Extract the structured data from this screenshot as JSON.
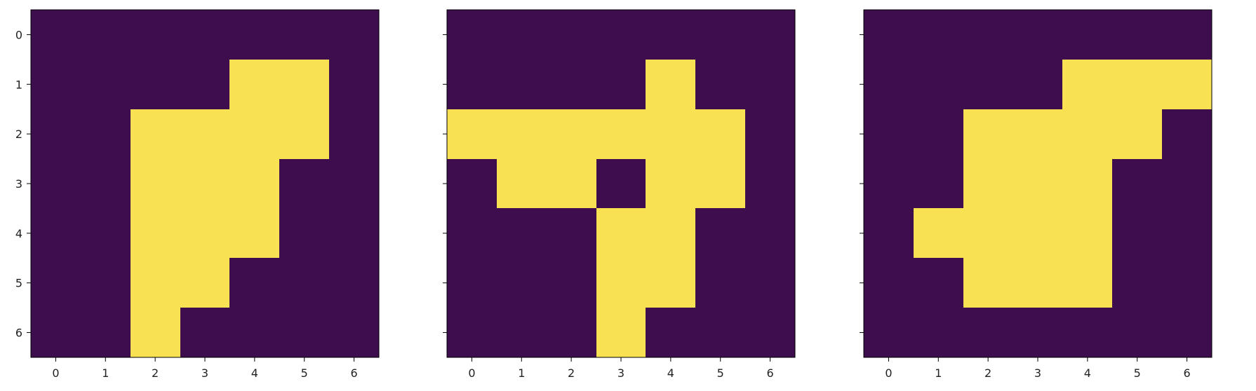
{
  "colors": {
    "background_cell": "#3d0d4d",
    "foreground_cell": "#f8e254",
    "axis": "#000000",
    "tick_text": "#222222"
  },
  "chart_data": [
    {
      "type": "heatmap",
      "title": "",
      "xlabel": "",
      "ylabel": "",
      "x_ticks": [
        "0",
        "1",
        "2",
        "3",
        "4",
        "5",
        "6"
      ],
      "y_ticks": [
        "0",
        "1",
        "2",
        "3",
        "4",
        "5",
        "6"
      ],
      "show_y_tick_labels": true,
      "grid": false,
      "matrix": [
        [
          0,
          0,
          0,
          0,
          0,
          0,
          0
        ],
        [
          0,
          0,
          0,
          0,
          1,
          1,
          0
        ],
        [
          0,
          0,
          1,
          1,
          1,
          1,
          0
        ],
        [
          0,
          0,
          1,
          1,
          1,
          0,
          0
        ],
        [
          0,
          0,
          1,
          1,
          1,
          0,
          0
        ],
        [
          0,
          0,
          1,
          1,
          0,
          0,
          0
        ],
        [
          0,
          0,
          1,
          0,
          0,
          0,
          0
        ]
      ]
    },
    {
      "type": "heatmap",
      "title": "",
      "xlabel": "",
      "ylabel": "",
      "x_ticks": [
        "0",
        "1",
        "2",
        "3",
        "4",
        "5",
        "6"
      ],
      "y_ticks": [
        "0",
        "1",
        "2",
        "3",
        "4",
        "5",
        "6"
      ],
      "show_y_tick_labels": false,
      "grid": false,
      "matrix": [
        [
          0,
          0,
          0,
          0,
          0,
          0,
          0
        ],
        [
          0,
          0,
          0,
          0,
          1,
          0,
          0
        ],
        [
          1,
          1,
          1,
          1,
          1,
          1,
          0
        ],
        [
          0,
          1,
          1,
          0,
          1,
          1,
          0
        ],
        [
          0,
          0,
          0,
          1,
          1,
          0,
          0
        ],
        [
          0,
          0,
          0,
          1,
          1,
          0,
          0
        ],
        [
          0,
          0,
          0,
          1,
          0,
          0,
          0
        ]
      ]
    },
    {
      "type": "heatmap",
      "title": "",
      "xlabel": "",
      "ylabel": "",
      "x_ticks": [
        "0",
        "1",
        "2",
        "3",
        "4",
        "5",
        "6"
      ],
      "y_ticks": [
        "0",
        "1",
        "2",
        "3",
        "4",
        "5",
        "6"
      ],
      "show_y_tick_labels": false,
      "grid": false,
      "matrix": [
        [
          0,
          0,
          0,
          0,
          0,
          0,
          0
        ],
        [
          0,
          0,
          0,
          0,
          1,
          1,
          1
        ],
        [
          0,
          0,
          1,
          1,
          1,
          1,
          0
        ],
        [
          0,
          0,
          1,
          1,
          1,
          0,
          0
        ],
        [
          0,
          1,
          1,
          1,
          1,
          0,
          0
        ],
        [
          0,
          0,
          1,
          1,
          1,
          0,
          0
        ],
        [
          0,
          0,
          0,
          0,
          0,
          0,
          0
        ]
      ]
    }
  ]
}
